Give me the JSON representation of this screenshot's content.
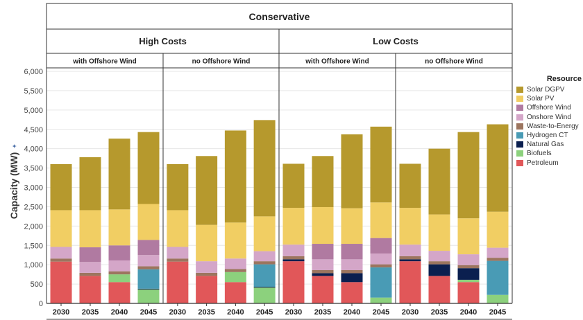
{
  "title": "Conservative",
  "cost_groups": [
    "High Costs",
    "Low Costs"
  ],
  "wind_groups": [
    "with Offshore Wind",
    "no Offshore Wind"
  ],
  "ylabel": "Capacity (MW)",
  "legend_title": "Resource",
  "colors": {
    "Petroleum": "#e15759",
    "Biofuels": "#8cd17d",
    "Natural Gas": "#0b1f4f",
    "Hydrogen CT": "#499bb5",
    "Waste-to-Energy": "#9c755f",
    "Onshore Wind": "#d4a6c8",
    "Offshore Wind": "#b07aa1",
    "Solar PV": "#f1ce63",
    "Solar DGPV": "#b6992d"
  },
  "chart_data": {
    "type": "bar",
    "stacked": true,
    "ylim": [
      0,
      6000
    ],
    "yticks": [
      0,
      500,
      1000,
      1500,
      2000,
      2500,
      3000,
      3500,
      4000,
      4500,
      5000,
      5500,
      6000
    ],
    "ytick_labels": [
      "0",
      "500",
      "1,000",
      "1,500",
      "2,000",
      "2,500",
      "3,000",
      "3,500",
      "4,000",
      "4,500",
      "5,000",
      "5,500",
      "6,000"
    ],
    "categories": [
      "2030",
      "2035",
      "2040",
      "2045"
    ],
    "resources": [
      "Petroleum",
      "Biofuels",
      "Natural Gas",
      "Hydrogen CT",
      "Waste-to-Energy",
      "Onshore Wind",
      "Offshore Wind",
      "Solar PV",
      "Solar DGPV"
    ],
    "legend_order": [
      "Solar DGPV",
      "Solar PV",
      "Offshore Wind",
      "Onshore Wind",
      "Waste-to-Energy",
      "Hydrogen CT",
      "Natural Gas",
      "Biofuels",
      "Petroleum"
    ],
    "panels": [
      {
        "cost": "High Costs",
        "wind": "with Offshore Wind",
        "series": {
          "Petroleum": [
            1080,
            710,
            550,
            0
          ],
          "Biofuels": [
            0,
            0,
            200,
            360
          ],
          "Natural Gas": [
            0,
            0,
            0,
            20
          ],
          "Hydrogen CT": [
            0,
            0,
            0,
            500
          ],
          "Waste-to-Energy": [
            80,
            80,
            80,
            80
          ],
          "Onshore Wind": [
            300,
            280,
            280,
            290
          ],
          "Offshore Wind": [
            0,
            380,
            390,
            390
          ],
          "Solar PV": [
            950,
            960,
            930,
            930
          ],
          "Solar DGPV": [
            1190,
            1370,
            1830,
            1860
          ]
        }
      },
      {
        "cost": "High Costs",
        "wind": "no Offshore Wind",
        "series": {
          "Petroleum": [
            1080,
            710,
            550,
            0
          ],
          "Biofuels": [
            0,
            0,
            260,
            410
          ],
          "Natural Gas": [
            0,
            0,
            0,
            20
          ],
          "Hydrogen CT": [
            0,
            0,
            0,
            580
          ],
          "Waste-to-Energy": [
            80,
            80,
            80,
            80
          ],
          "Onshore Wind": [
            300,
            300,
            270,
            260
          ],
          "Offshore Wind": [
            0,
            0,
            0,
            0
          ],
          "Solar PV": [
            950,
            940,
            930,
            900
          ],
          "Solar DGPV": [
            1190,
            1780,
            2380,
            2490
          ]
        }
      },
      {
        "cost": "Low Costs",
        "wind": "with Offshore Wind",
        "series": {
          "Petroleum": [
            1090,
            710,
            550,
            0
          ],
          "Biofuels": [
            0,
            0,
            0,
            150
          ],
          "Natural Gas": [
            50,
            70,
            230,
            0
          ],
          "Hydrogen CT": [
            0,
            0,
            0,
            780
          ],
          "Waste-to-Energy": [
            80,
            80,
            80,
            80
          ],
          "Onshore Wind": [
            300,
            280,
            280,
            280
          ],
          "Offshore Wind": [
            0,
            400,
            400,
            400
          ],
          "Solar PV": [
            950,
            950,
            920,
            920
          ],
          "Solar DGPV": [
            1140,
            1320,
            1910,
            1960
          ]
        }
      },
      {
        "cost": "Low Costs",
        "wind": "no Offshore Wind",
        "series": {
          "Petroleum": [
            1090,
            710,
            550,
            0
          ],
          "Biofuels": [
            0,
            0,
            60,
            220
          ],
          "Natural Gas": [
            50,
            300,
            300,
            0
          ],
          "Hydrogen CT": [
            0,
            0,
            0,
            880
          ],
          "Waste-to-Energy": [
            80,
            80,
            80,
            80
          ],
          "Onshore Wind": [
            300,
            270,
            280,
            260
          ],
          "Offshore Wind": [
            0,
            0,
            0,
            0
          ],
          "Solar PV": [
            950,
            940,
            930,
            930
          ],
          "Solar DGPV": [
            1140,
            1700,
            2230,
            2260
          ]
        }
      }
    ]
  }
}
